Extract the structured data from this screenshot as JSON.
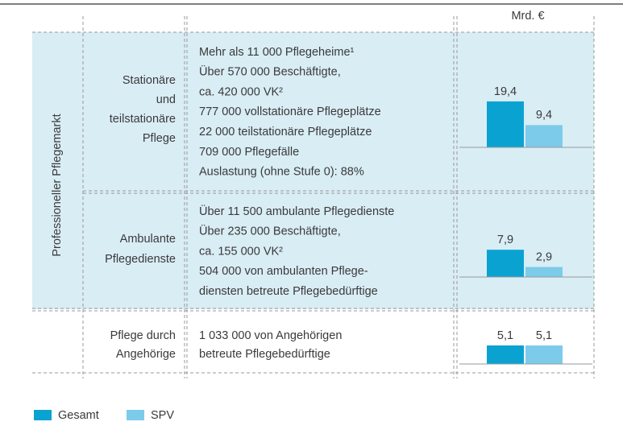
{
  "unit": "Mrd. €",
  "side_label": "Professioneller Pflegemarkt",
  "series": [
    {
      "name": "Gesamt",
      "color": "#0aa3d1"
    },
    {
      "name": "SPV",
      "color": "#7dcbeb"
    }
  ],
  "rows": [
    {
      "label": [
        "Stationäre",
        "und",
        "teilstationäre",
        "Pflege"
      ],
      "lines": [
        "Mehr als 11 000 Pflegeheime¹",
        "Über 570 000 Beschäftigte,",
        "ca. 420 000 VK²",
        "777 000  vollstationäre Pflegeplätze",
        "22 000 teilstationäre Pflegeplätze",
        "709 000 Pflegefälle",
        "Auslastung (ohne Stufe 0): 88%"
      ],
      "chart": {
        "type": "bar",
        "ylim": [
          0,
          20.4
        ],
        "values": [
          19.4,
          9.4
        ],
        "value_labels": [
          "19,4",
          "9,4"
        ]
      }
    },
    {
      "label": [
        "Ambulante",
        "Pflegedienste"
      ],
      "lines": [
        "Über 11 500 ambulante Pflegedienste",
        "Über 235 000 Beschäftigte,",
        "ca. 155 000 VK²",
        "504 000 von ambulanten Pflege-",
        "diensten betreute Pflegebedürftige"
      ],
      "chart": {
        "type": "bar",
        "ylim": [
          0,
          14
        ],
        "values": [
          7.9,
          2.9
        ],
        "value_labels": [
          "7,9",
          "2,9"
        ]
      }
    },
    {
      "label": [
        "Pflege durch",
        "Angehörige"
      ],
      "lines": [
        "1 033 000 von Angehörigen",
        "betreute Pflegebedürftige"
      ],
      "chart": {
        "type": "bar",
        "ylim": [
          0,
          13.3
        ],
        "values": [
          5.1,
          5.1
        ],
        "value_labels": [
          "5,1",
          "5,1"
        ]
      }
    }
  ]
}
